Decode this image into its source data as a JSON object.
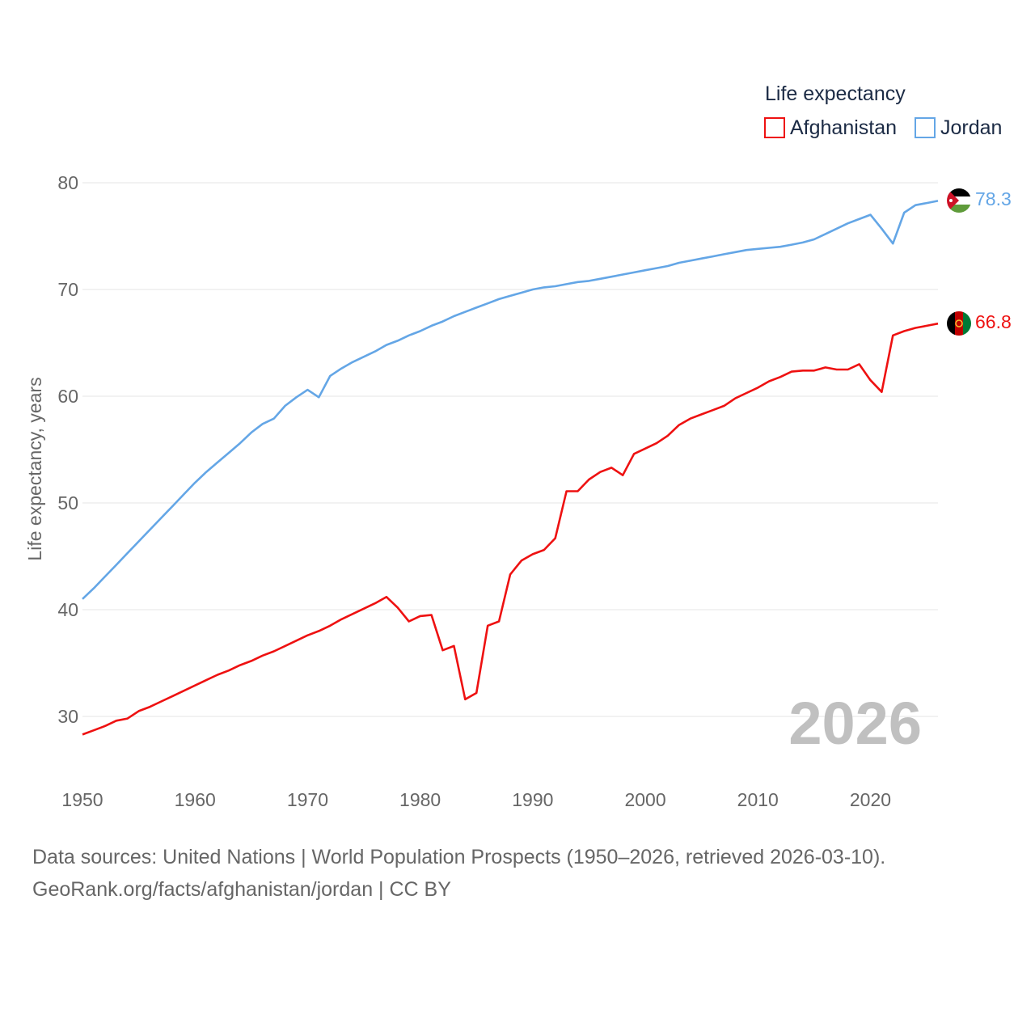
{
  "chart_data": {
    "type": "line",
    "ylabel": "Life expectancy, years",
    "xlim": [
      1950,
      2026
    ],
    "ylim": [
      25,
      85
    ],
    "y_ticks": [
      "30",
      "40",
      "50",
      "60",
      "70",
      "80"
    ],
    "x_ticks": [
      "1950",
      "1960",
      "1970",
      "1980",
      "1990",
      "2000",
      "2010",
      "2020"
    ],
    "grid": true,
    "year_watermark": "2026",
    "legend": {
      "title": "Life expectancy",
      "placement": "top-right"
    },
    "x": [
      1950,
      1951,
      1952,
      1953,
      1954,
      1955,
      1956,
      1957,
      1958,
      1959,
      1960,
      1961,
      1962,
      1963,
      1964,
      1965,
      1966,
      1967,
      1968,
      1969,
      1970,
      1971,
      1972,
      1973,
      1974,
      1975,
      1976,
      1977,
      1978,
      1979,
      1980,
      1981,
      1982,
      1983,
      1984,
      1985,
      1986,
      1987,
      1988,
      1989,
      1990,
      1991,
      1992,
      1993,
      1994,
      1995,
      1996,
      1997,
      1998,
      1999,
      2000,
      2001,
      2002,
      2003,
      2004,
      2005,
      2006,
      2007,
      2008,
      2009,
      2010,
      2011,
      2012,
      2013,
      2014,
      2015,
      2016,
      2017,
      2018,
      2019,
      2020,
      2021,
      2022,
      2023,
      2024,
      2025,
      2026
    ],
    "series": [
      {
        "name": "Afghanistan",
        "color": "#ee1111",
        "end_label": "66.8",
        "flag": "afghanistan-flag",
        "values": [
          28.3,
          28.7,
          29.1,
          29.6,
          29.8,
          30.5,
          30.9,
          31.4,
          31.9,
          32.4,
          32.9,
          33.4,
          33.9,
          34.3,
          34.8,
          35.2,
          35.7,
          36.1,
          36.6,
          37.1,
          37.6,
          38.0,
          38.5,
          39.1,
          39.6,
          40.1,
          40.6,
          41.2,
          40.2,
          38.9,
          39.4,
          39.5,
          36.2,
          36.6,
          31.6,
          32.2,
          38.5,
          38.9,
          43.3,
          44.6,
          45.2,
          45.6,
          46.7,
          51.1,
          51.1,
          52.2,
          52.9,
          53.3,
          52.6,
          54.6,
          55.1,
          55.6,
          56.3,
          57.3,
          57.9,
          58.3,
          58.7,
          59.1,
          59.8,
          60.3,
          60.8,
          61.4,
          61.8,
          62.3,
          62.4,
          62.4,
          62.7,
          62.5,
          62.5,
          63.0,
          61.5,
          60.4,
          65.7,
          66.1,
          66.4,
          66.6,
          66.8
        ]
      },
      {
        "name": "Jordan",
        "color": "#64a6e6",
        "end_label": "78.3",
        "flag": "jordan-flag",
        "values": [
          41.0,
          42.0,
          43.1,
          44.2,
          45.3,
          46.4,
          47.5,
          48.6,
          49.7,
          50.8,
          51.9,
          52.9,
          53.8,
          54.7,
          55.6,
          56.6,
          57.4,
          57.9,
          59.1,
          59.9,
          60.6,
          59.9,
          61.9,
          62.6,
          63.2,
          63.7,
          64.2,
          64.8,
          65.2,
          65.7,
          66.1,
          66.6,
          67.0,
          67.5,
          67.9,
          68.3,
          68.7,
          69.1,
          69.4,
          69.7,
          70.0,
          70.2,
          70.3,
          70.5,
          70.7,
          70.8,
          71.0,
          71.2,
          71.4,
          71.6,
          71.8,
          72.0,
          72.2,
          72.5,
          72.7,
          72.9,
          73.1,
          73.3,
          73.5,
          73.7,
          73.8,
          73.9,
          74.0,
          74.2,
          74.4,
          74.7,
          75.2,
          75.7,
          76.2,
          76.6,
          77.0,
          75.7,
          74.3,
          77.2,
          77.9,
          78.1,
          78.3
        ]
      }
    ]
  },
  "footer": {
    "sources": "Data sources: United Nations | World Population Prospects (1950–2026, retrieved 2026-03-10).",
    "link": "GeoRank.org/facts/afghanistan/jordan | CC BY"
  }
}
